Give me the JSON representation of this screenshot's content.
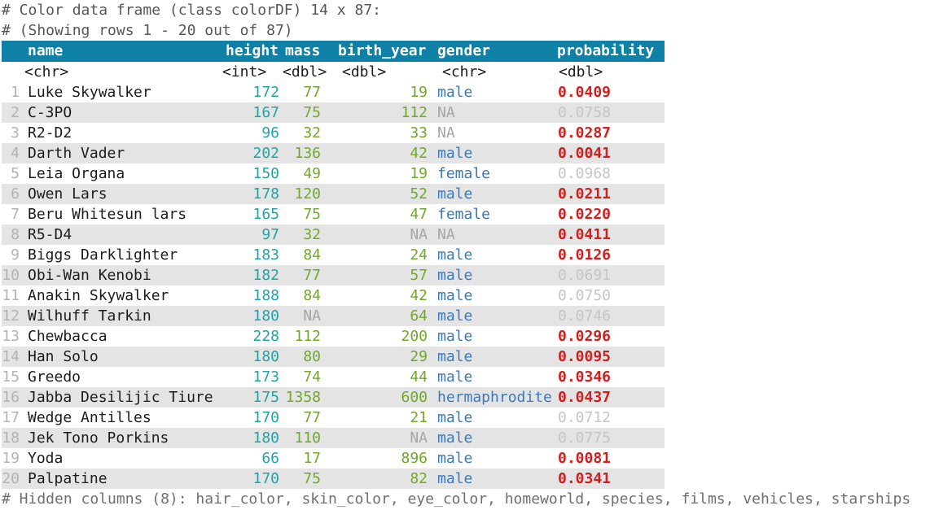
{
  "meta": {
    "line1": "# Color data frame (class colorDF) 14 x 87:",
    "line2": "# (Showing rows 1 - 20 out of 87)",
    "footer": "# Hidden columns (8): hair_color, skin_color, eye_color, homeworld, species, films, vehicles, starships"
  },
  "table": {
    "columns": [
      "name",
      "height",
      "mass",
      "birth_year",
      "gender",
      "probability"
    ],
    "types": [
      "<chr>",
      "<int>",
      "<dbl>",
      "<dbl>",
      "<chr>",
      "<dbl>"
    ],
    "rows": [
      {
        "num": "1",
        "name": "Luke Skywalker",
        "height": "172",
        "mass": "77",
        "birth_year": "19",
        "gender": "male",
        "probability": "0.0409",
        "significant": true
      },
      {
        "num": "2",
        "name": "C-3PO",
        "height": "167",
        "mass": "75",
        "birth_year": "112",
        "gender": "NA",
        "probability": "0.0758",
        "significant": false
      },
      {
        "num": "3",
        "name": "R2-D2",
        "height": "96",
        "mass": "32",
        "birth_year": "33",
        "gender": "NA",
        "probability": "0.0287",
        "significant": true
      },
      {
        "num": "4",
        "name": "Darth Vader",
        "height": "202",
        "mass": "136",
        "birth_year": "42",
        "gender": "male",
        "probability": "0.0041",
        "significant": true
      },
      {
        "num": "5",
        "name": "Leia Organa",
        "height": "150",
        "mass": "49",
        "birth_year": "19",
        "gender": "female",
        "probability": "0.0968",
        "significant": false
      },
      {
        "num": "6",
        "name": "Owen Lars",
        "height": "178",
        "mass": "120",
        "birth_year": "52",
        "gender": "male",
        "probability": "0.0211",
        "significant": true
      },
      {
        "num": "7",
        "name": "Beru Whitesun lars",
        "height": "165",
        "mass": "75",
        "birth_year": "47",
        "gender": "female",
        "probability": "0.0220",
        "significant": true
      },
      {
        "num": "8",
        "name": "R5-D4",
        "height": "97",
        "mass": "32",
        "birth_year": "NA",
        "gender": "NA",
        "probability": "0.0411",
        "significant": true
      },
      {
        "num": "9",
        "name": "Biggs Darklighter",
        "height": "183",
        "mass": "84",
        "birth_year": "24",
        "gender": "male",
        "probability": "0.0126",
        "significant": true
      },
      {
        "num": "10",
        "name": "Obi-Wan Kenobi",
        "height": "182",
        "mass": "77",
        "birth_year": "57",
        "gender": "male",
        "probability": "0.0691",
        "significant": false
      },
      {
        "num": "11",
        "name": "Anakin Skywalker",
        "height": "188",
        "mass": "84",
        "birth_year": "42",
        "gender": "male",
        "probability": "0.0750",
        "significant": false
      },
      {
        "num": "12",
        "name": "Wilhuff Tarkin",
        "height": "180",
        "mass": "NA",
        "birth_year": "64",
        "gender": "male",
        "probability": "0.0746",
        "significant": false
      },
      {
        "num": "13",
        "name": "Chewbacca",
        "height": "228",
        "mass": "112",
        "birth_year": "200",
        "gender": "male",
        "probability": "0.0296",
        "significant": true
      },
      {
        "num": "14",
        "name": "Han Solo",
        "height": "180",
        "mass": "80",
        "birth_year": "29",
        "gender": "male",
        "probability": "0.0095",
        "significant": true
      },
      {
        "num": "15",
        "name": "Greedo",
        "height": "173",
        "mass": "74",
        "birth_year": "44",
        "gender": "male",
        "probability": "0.0346",
        "significant": true
      },
      {
        "num": "16",
        "name": "Jabba Desilijic Tiure",
        "height": "175",
        "mass": "1358",
        "birth_year": "600",
        "gender": "hermaphrodite",
        "probability": "0.0437",
        "significant": true
      },
      {
        "num": "17",
        "name": "Wedge Antilles",
        "height": "170",
        "mass": "77",
        "birth_year": "21",
        "gender": "male",
        "probability": "0.0712",
        "significant": false
      },
      {
        "num": "18",
        "name": "Jek Tono Porkins",
        "height": "180",
        "mass": "110",
        "birth_year": "NA",
        "gender": "male",
        "probability": "0.0775",
        "significant": false
      },
      {
        "num": "19",
        "name": "Yoda",
        "height": "66",
        "mass": "17",
        "birth_year": "896",
        "gender": "male",
        "probability": "0.0081",
        "significant": true
      },
      {
        "num": "20",
        "name": "Palpatine",
        "height": "170",
        "mass": "75",
        "birth_year": "82",
        "gender": "male",
        "probability": "0.0341",
        "significant": true
      }
    ]
  },
  "colors": {
    "header-bg": "#0f81a6",
    "comment": "#565656",
    "footer": "#6f6f6f",
    "rownum": "#b3b3b3",
    "int-color": "#21a3a6",
    "dbl-color": "#70a82b",
    "chr-color": "#3c79b8",
    "sig-color": "#cf1f1f",
    "insig-color": "#c7c4c4",
    "na-color": "#a6a6a6",
    "stripe": "#e4e4e4"
  }
}
